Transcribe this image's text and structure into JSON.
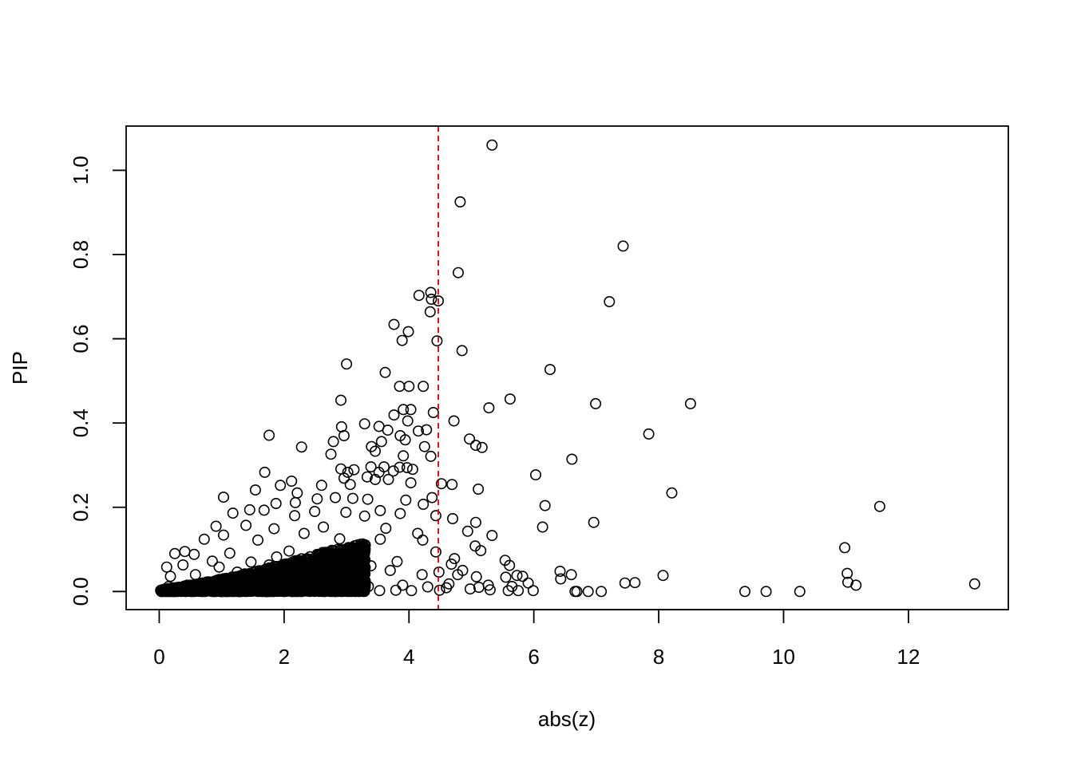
{
  "chart_data": {
    "type": "scatter",
    "title": "",
    "xlabel": "abs(z)",
    "ylabel": "PIP",
    "xlim": [
      -0.53,
      13.6
    ],
    "ylim": [
      -0.043,
      1.105
    ],
    "xticks": [
      "0",
      "2",
      "4",
      "6",
      "8",
      "10",
      "12"
    ],
    "yticks": [
      "0.0",
      "0.2",
      "0.4",
      "0.6",
      "0.8",
      "1.0"
    ],
    "grid": false,
    "marker": "open-circle",
    "marker_color": "#000000",
    "reference_line": {
      "orientation": "vertical",
      "x": 4.47,
      "style": "dashed",
      "color": "#dd0000"
    },
    "points": [
      [
        5.33,
        1.06
      ],
      [
        4.82,
        0.925
      ],
      [
        7.43,
        0.82
      ],
      [
        4.79,
        0.757
      ],
      [
        4.35,
        0.71
      ],
      [
        4.16,
        0.703
      ],
      [
        4.36,
        0.694
      ],
      [
        4.47,
        0.69
      ],
      [
        4.34,
        0.664
      ],
      [
        7.21,
        0.688
      ],
      [
        3.76,
        0.634
      ],
      [
        3.99,
        0.617
      ],
      [
        3.89,
        0.596
      ],
      [
        4.45,
        0.595
      ],
      [
        4.85,
        0.572
      ],
      [
        3.0,
        0.54
      ],
      [
        6.26,
        0.527
      ],
      [
        3.62,
        0.52
      ],
      [
        3.85,
        0.487
      ],
      [
        4.0,
        0.487
      ],
      [
        4.23,
        0.487
      ],
      [
        5.62,
        0.457
      ],
      [
        2.91,
        0.454
      ],
      [
        6.99,
        0.446
      ],
      [
        8.51,
        0.446
      ],
      [
        3.91,
        0.432
      ],
      [
        4.03,
        0.432
      ],
      [
        5.28,
        0.436
      ],
      [
        3.76,
        0.419
      ],
      [
        4.39,
        0.425
      ],
      [
        4.72,
        0.405
      ],
      [
        3.98,
        0.405
      ],
      [
        3.29,
        0.398
      ],
      [
        3.52,
        0.392
      ],
      [
        2.92,
        0.391
      ],
      [
        7.84,
        0.374
      ],
      [
        1.76,
        0.371
      ],
      [
        2.96,
        0.37
      ],
      [
        3.66,
        0.383
      ],
      [
        4.15,
        0.381
      ],
      [
        4.28,
        0.384
      ],
      [
        3.86,
        0.37
      ],
      [
        3.94,
        0.36
      ],
      [
        4.97,
        0.362
      ],
      [
        2.79,
        0.356
      ],
      [
        3.56,
        0.356
      ],
      [
        3.4,
        0.344
      ],
      [
        4.25,
        0.344
      ],
      [
        5.07,
        0.347
      ],
      [
        5.17,
        0.342
      ],
      [
        2.28,
        0.343
      ],
      [
        2.75,
        0.326
      ],
      [
        3.46,
        0.333
      ],
      [
        3.91,
        0.322
      ],
      [
        4.35,
        0.321
      ],
      [
        6.61,
        0.314
      ],
      [
        3.39,
        0.296
      ],
      [
        3.6,
        0.296
      ],
      [
        3.85,
        0.295
      ],
      [
        3.97,
        0.294
      ],
      [
        4.06,
        0.29
      ],
      [
        2.91,
        0.291
      ],
      [
        3.12,
        0.289
      ],
      [
        3.75,
        0.286
      ],
      [
        1.69,
        0.283
      ],
      [
        3.02,
        0.283
      ],
      [
        3.52,
        0.283
      ],
      [
        6.03,
        0.277
      ],
      [
        2.96,
        0.269
      ],
      [
        3.33,
        0.272
      ],
      [
        3.46,
        0.266
      ],
      [
        3.67,
        0.266
      ],
      [
        2.12,
        0.262
      ],
      [
        2.6,
        0.252
      ],
      [
        1.94,
        0.252
      ],
      [
        3.06,
        0.254
      ],
      [
        4.03,
        0.258
      ],
      [
        4.52,
        0.256
      ],
      [
        4.69,
        0.254
      ],
      [
        5.11,
        0.243
      ],
      [
        1.54,
        0.241
      ],
      [
        2.21,
        0.234
      ],
      [
        8.21,
        0.234
      ],
      [
        1.03,
        0.224
      ],
      [
        2.53,
        0.22
      ],
      [
        2.82,
        0.223
      ],
      [
        3.1,
        0.221
      ],
      [
        3.34,
        0.219
      ],
      [
        3.95,
        0.217
      ],
      [
        4.37,
        0.223
      ],
      [
        1.87,
        0.209
      ],
      [
        2.18,
        0.211
      ],
      [
        4.23,
        0.207
      ],
      [
        6.18,
        0.204
      ],
      [
        11.54,
        0.202
      ],
      [
        1.45,
        0.194
      ],
      [
        1.68,
        0.193
      ],
      [
        2.49,
        0.19
      ],
      [
        2.99,
        0.188
      ],
      [
        3.54,
        0.192
      ],
      [
        3.86,
        0.185
      ],
      [
        1.18,
        0.186
      ],
      [
        2.17,
        0.18
      ],
      [
        3.29,
        0.179
      ],
      [
        4.43,
        0.18
      ],
      [
        4.7,
        0.173
      ],
      [
        5.07,
        0.164
      ],
      [
        6.96,
        0.164
      ],
      [
        0.91,
        0.155
      ],
      [
        1.39,
        0.157
      ],
      [
        1.84,
        0.149
      ],
      [
        2.63,
        0.153
      ],
      [
        3.63,
        0.15
      ],
      [
        6.14,
        0.153
      ],
      [
        4.94,
        0.143
      ],
      [
        1.03,
        0.134
      ],
      [
        2.32,
        0.138
      ],
      [
        4.14,
        0.138
      ],
      [
        5.33,
        0.133
      ],
      [
        0.72,
        0.124
      ],
      [
        1.58,
        0.122
      ],
      [
        2.89,
        0.125
      ],
      [
        3.54,
        0.124
      ],
      [
        4.22,
        0.122
      ],
      [
        5.06,
        0.108
      ],
      [
        5.15,
        0.097
      ],
      [
        10.98,
        0.104
      ],
      [
        0.41,
        0.095
      ],
      [
        1.13,
        0.091
      ],
      [
        2.08,
        0.096
      ],
      [
        3.2,
        0.094
      ],
      [
        4.43,
        0.094
      ],
      [
        0.25,
        0.09
      ],
      [
        0.56,
        0.088
      ],
      [
        1.88,
        0.082
      ],
      [
        3.05,
        0.086
      ],
      [
        4.73,
        0.078
      ],
      [
        5.54,
        0.074
      ],
      [
        0.85,
        0.072
      ],
      [
        1.47,
        0.07
      ],
      [
        2.34,
        0.076
      ],
      [
        3.81,
        0.071
      ],
      [
        4.68,
        0.065
      ],
      [
        5.61,
        0.062
      ],
      [
        0.12,
        0.058
      ],
      [
        0.38,
        0.063
      ],
      [
        0.96,
        0.058
      ],
      [
        1.76,
        0.063
      ],
      [
        2.66,
        0.06
      ],
      [
        3.39,
        0.061
      ],
      [
        4.48,
        0.046
      ],
      [
        4.86,
        0.05
      ],
      [
        6.42,
        0.048
      ],
      [
        8.07,
        0.038
      ],
      [
        11.02,
        0.043
      ],
      [
        6.6,
        0.04
      ],
      [
        5.73,
        0.038
      ],
      [
        5.82,
        0.036
      ],
      [
        4.78,
        0.04
      ],
      [
        5.08,
        0.035
      ],
      [
        5.55,
        0.034
      ],
      [
        6.43,
        0.03
      ],
      [
        0.18,
        0.036
      ],
      [
        0.58,
        0.04
      ],
      [
        1.25,
        0.046
      ],
      [
        2.05,
        0.051
      ],
      [
        2.94,
        0.047
      ],
      [
        3.7,
        0.05
      ],
      [
        4.21,
        0.04
      ],
      [
        11.03,
        0.022
      ],
      [
        11.16,
        0.015
      ],
      [
        13.06,
        0.018
      ],
      [
        7.46,
        0.02
      ],
      [
        7.62,
        0.021
      ],
      [
        5.91,
        0.02
      ],
      [
        4.64,
        0.018
      ],
      [
        5.27,
        0.015
      ],
      [
        6.66,
        0.0
      ],
      [
        6.87,
        0.0
      ],
      [
        7.08,
        0.0
      ],
      [
        6.69,
        0.0
      ],
      [
        9.38,
        0.0
      ],
      [
        9.72,
        0.0
      ],
      [
        10.26,
        0.0
      ],
      [
        5.59,
        0.002
      ],
      [
        5.75,
        0.002
      ],
      [
        5.99,
        0.002
      ],
      [
        5.3,
        0.004
      ],
      [
        4.98,
        0.006
      ],
      [
        4.49,
        0.003
      ],
      [
        4.04,
        0.002
      ],
      [
        3.79,
        0.003
      ],
      [
        3.53,
        0.002
      ],
      [
        3.1,
        0.003
      ],
      [
        2.7,
        0.003
      ],
      [
        2.3,
        0.002
      ],
      [
        1.9,
        0.003
      ],
      [
        1.5,
        0.002
      ],
      [
        1.1,
        0.003
      ],
      [
        0.7,
        0.002
      ],
      [
        0.3,
        0.003
      ],
      [
        0.05,
        0.004
      ],
      [
        0.15,
        0.012
      ],
      [
        0.45,
        0.015
      ],
      [
        0.8,
        0.013
      ],
      [
        1.3,
        0.017
      ],
      [
        1.7,
        0.014
      ],
      [
        2.2,
        0.018
      ],
      [
        2.55,
        0.013
      ],
      [
        3.0,
        0.016
      ],
      [
        3.35,
        0.012
      ],
      [
        3.9,
        0.015
      ],
      [
        4.3,
        0.011
      ],
      [
        4.6,
        0.009
      ],
      [
        5.12,
        0.01
      ],
      [
        5.65,
        0.012
      ]
    ]
  }
}
